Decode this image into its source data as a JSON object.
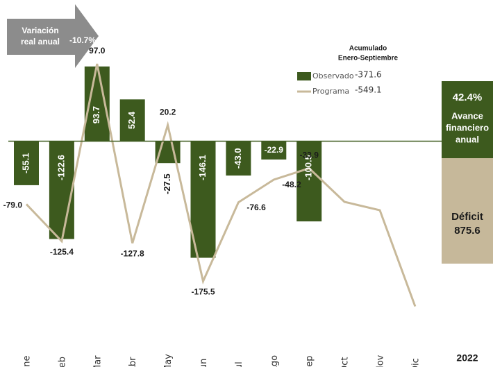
{
  "chart_data": {
    "type": "bar",
    "categories": [
      "Ene",
      "Feb",
      "Mar",
      "Abr",
      "May",
      "Jun",
      "Jul",
      "Ago",
      "Sep",
      "Oct",
      "Nov",
      "Dic"
    ],
    "series": [
      {
        "name": "Observado",
        "type": "bar",
        "color": "#3d5a1e",
        "values": [
          -55.1,
          -122.6,
          93.7,
          52.4,
          -27.5,
          -146.1,
          -43.0,
          -22.9,
          -100.5,
          null,
          null,
          null
        ],
        "value_labels": [
          "-55.1",
          "-122.6",
          "93.7",
          "52.4",
          "-27.5",
          "-146.1",
          "-43.0",
          "-22.9",
          "-100.5",
          null,
          null,
          null
        ]
      },
      {
        "name": "Programa",
        "type": "line",
        "color": "#c8b99a",
        "values": [
          -79.0,
          -125.4,
          97.0,
          -127.8,
          20.2,
          -175.5,
          -76.6,
          -48.2,
          -33.9,
          -76,
          -86.5,
          -207
        ],
        "value_labels": [
          "-79.0",
          "-125.4",
          "97.0",
          "-127.8",
          "20.2",
          "-175.5",
          "-76.6",
          "-48.2",
          "-33.9",
          null,
          null,
          null
        ]
      }
    ],
    "ylim": [
      -283,
      177
    ],
    "legend_title": [
      "Acumulado",
      "Enero-Septiembre"
    ],
    "legend_values": [
      -371.6,
      -549.1
    ],
    "arrow_label": [
      "Variación",
      "real anual"
    ],
    "arrow_value": "-10.7%",
    "advance_value": "42.4%",
    "advance_label": [
      "Avance",
      "financiero",
      "anual"
    ],
    "deficit_label": "Déficit",
    "deficit_value": 875.6,
    "year": "2022"
  }
}
